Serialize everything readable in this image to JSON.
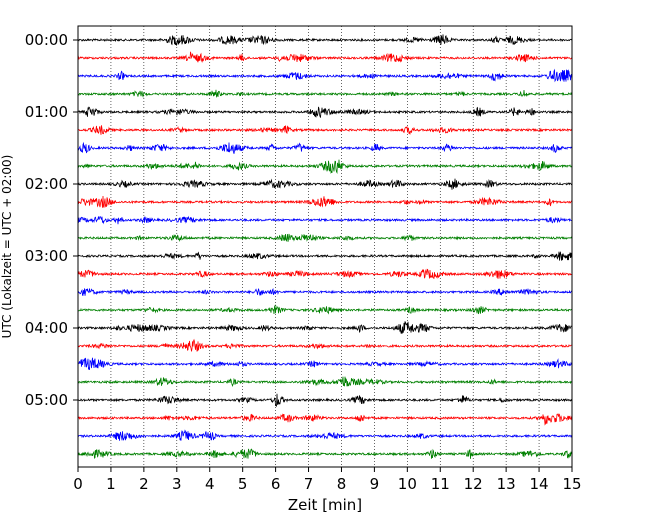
{
  "chart_data": {
    "type": "line",
    "title": "",
    "xlabel": "Zeit  [min]",
    "ylabel": "UTC (Lokalzeit = UTC + 02:00)",
    "xlim": [
      0,
      15
    ],
    "x_ticks": [
      "0",
      "1",
      "2",
      "3",
      "4",
      "5",
      "6",
      "7",
      "8",
      "9",
      "10",
      "11",
      "12",
      "13",
      "14",
      "15"
    ],
    "y_ticks": [
      "00:00",
      "01:00",
      "02:00",
      "03:00",
      "04:00",
      "05:00"
    ],
    "trace_interval_minutes": 15,
    "trace_start_times": [
      "00:00",
      "00:15",
      "00:30",
      "00:45",
      "01:00",
      "01:15",
      "01:30",
      "01:45",
      "02:00",
      "02:15",
      "02:30",
      "02:45",
      "03:00",
      "03:15",
      "03:30",
      "03:45",
      "04:00",
      "04:15",
      "04:30",
      "04:45",
      "05:00",
      "05:15",
      "05:30",
      "05:45"
    ],
    "trace_colors": [
      "#000000",
      "#ff0000",
      "#0000ff",
      "#008000"
    ],
    "grid": "vertical dotted lines at each minute",
    "legend": "none"
  }
}
